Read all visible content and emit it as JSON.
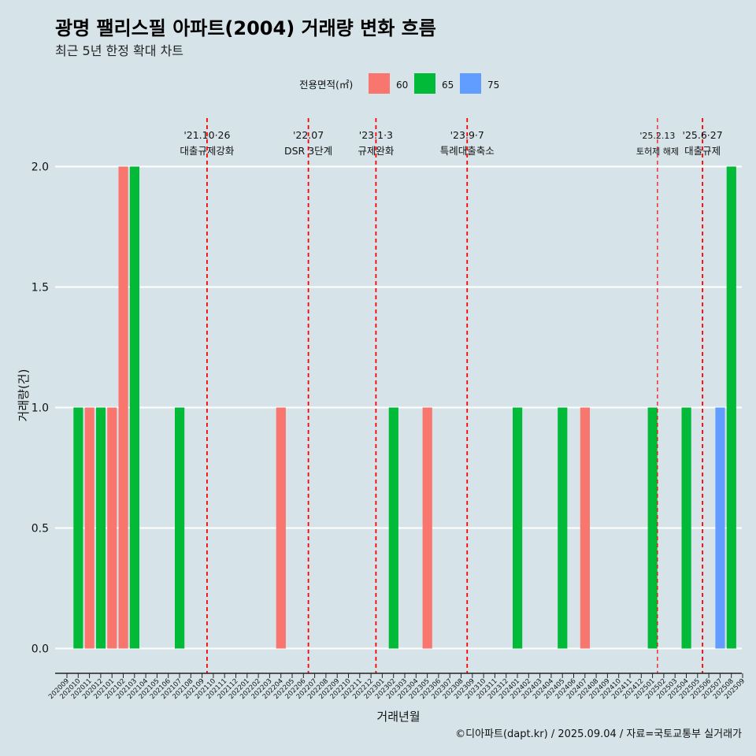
{
  "chart_data": {
    "type": "bar",
    "title": "광명 팰리스필 아파트(2004) 거래량 변화 흐름",
    "subtitle": "최근 5년 한정 확대 차트",
    "xlabel": "거래년월",
    "ylabel": "거래량(건)",
    "ylim": [
      -0.1,
      2.2
    ],
    "yticks": [
      "0.0",
      "0.5",
      "1.0",
      "1.5",
      "2.0"
    ],
    "ytick_values": [
      0,
      0.5,
      1.0,
      1.5,
      2.0
    ],
    "legend_title": "전용면적(㎡)",
    "legend_position": "top",
    "caption": "©디아파트(dapt.kr) / 2025.09.04 / 자료=국토교통부 실거래가",
    "categories": [
      "202009",
      "202010",
      "202011",
      "202012",
      "202101",
      "202102",
      "202103",
      "202104",
      "202105",
      "202106",
      "202107",
      "202108",
      "202109",
      "202110",
      "202111",
      "202112",
      "202201",
      "202202",
      "202203",
      "202204",
      "202205",
      "202206",
      "202207",
      "202208",
      "202209",
      "202210",
      "202211",
      "202212",
      "202301",
      "202302",
      "202303",
      "202304",
      "202305",
      "202306",
      "202307",
      "202308",
      "202309",
      "202310",
      "202311",
      "202312",
      "202401",
      "202402",
      "202403",
      "202404",
      "202405",
      "202406",
      "202407",
      "202408",
      "202409",
      "202410",
      "202411",
      "202412",
      "202501",
      "202502",
      "202503",
      "202504",
      "202505",
      "202506",
      "202507",
      "202508",
      "202509"
    ],
    "series": [
      {
        "name": "60",
        "color": "#f8766d",
        "points": [
          [
            "202011",
            1
          ],
          [
            "202101",
            1
          ],
          [
            "202102",
            2
          ],
          [
            "202204",
            1
          ],
          [
            "202305",
            1
          ],
          [
            "202407",
            1
          ]
        ]
      },
      {
        "name": "65",
        "color": "#00ba38",
        "points": [
          [
            "202010",
            1
          ],
          [
            "202012",
            1
          ],
          [
            "202103",
            2
          ],
          [
            "202107",
            1
          ],
          [
            "202302",
            1
          ],
          [
            "202401",
            1
          ],
          [
            "202405",
            1
          ],
          [
            "202501",
            1
          ],
          [
            "202504",
            1
          ],
          [
            "202508",
            2
          ]
        ]
      },
      {
        "name": "75",
        "color": "#619cff",
        "points": [
          [
            "202507",
            1
          ]
        ]
      }
    ],
    "events": [
      {
        "date_line1": "'21.10·26",
        "date_line2": "대출규제강화",
        "x_pos": 13.0,
        "small": false
      },
      {
        "date_line1": "'22.07",
        "date_line2": "DSR 3단계",
        "x_pos": 22.0,
        "small": false
      },
      {
        "date_line1": "'23.1·3",
        "date_line2": "규제완화",
        "x_pos": 28.0,
        "small": false
      },
      {
        "date_line1": "'23.9·7",
        "date_line2": "특례대출축소",
        "x_pos": 36.1,
        "small": false
      },
      {
        "date_line1": "'25.2.13",
        "date_line2": "토허제 해제",
        "x_pos": 53.0,
        "small": true
      },
      {
        "date_line1": "'25.6·27",
        "date_line2": "대출규제",
        "x_pos": 57.0,
        "small": false
      }
    ]
  }
}
